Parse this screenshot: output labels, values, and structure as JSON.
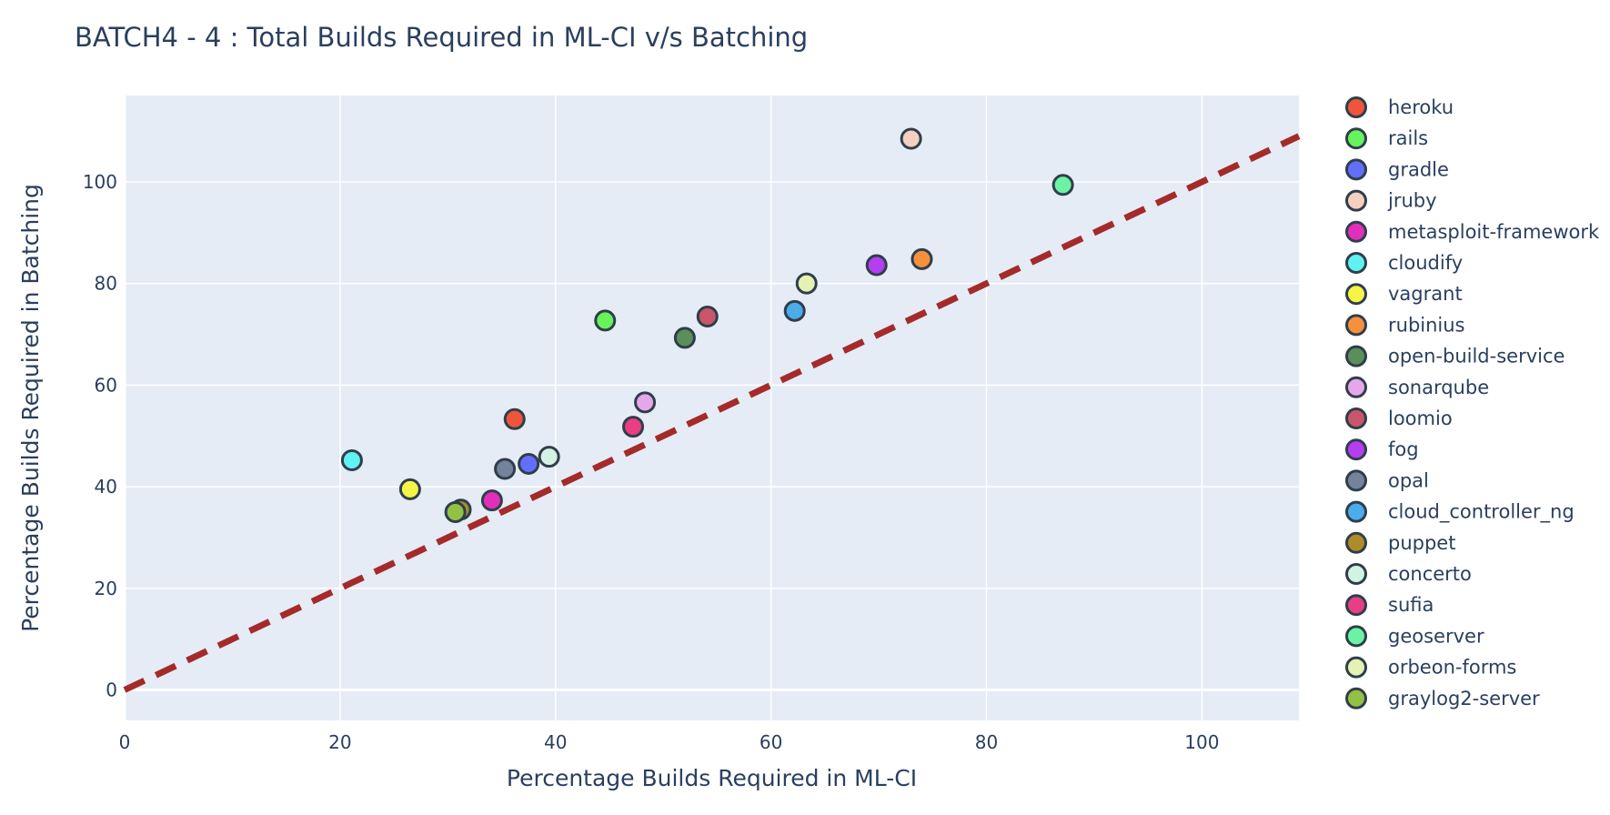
{
  "chart_data": {
    "type": "scatter",
    "title": "BATCH4 - 4 : Total Builds Required in ML-CI v/s Batching",
    "xlabel": "Percentage Builds Required in ML-CI",
    "ylabel": "Percentage Builds Required in Batching",
    "xlim": [
      0,
      109
    ],
    "ylim": [
      -6,
      117
    ],
    "xticks": [
      0,
      20,
      40,
      60,
      80,
      100
    ],
    "yticks": [
      0,
      20,
      40,
      60,
      80,
      100
    ],
    "grid": true,
    "legend_position": "right",
    "reference_line": {
      "x": [
        0,
        109
      ],
      "y": [
        0,
        109
      ],
      "color": "#a52a2a",
      "style": "dashed"
    },
    "series": [
      {
        "name": "heroku",
        "color": "#ef553b",
        "x": 36.2,
        "y": 53.3
      },
      {
        "name": "rails",
        "color": "#66f35b",
        "x": 44.6,
        "y": 72.7
      },
      {
        "name": "gradle",
        "color": "#636efa",
        "x": 37.5,
        "y": 44.5
      },
      {
        "name": "jruby",
        "color": "#f5cfc0",
        "x": 73.0,
        "y": 108.5
      },
      {
        "name": "metasploit-framework",
        "color": "#e22fba",
        "x": 34.1,
        "y": 37.3
      },
      {
        "name": "cloudify",
        "color": "#5ef2f2",
        "x": 21.1,
        "y": 45.2
      },
      {
        "name": "vagrant",
        "color": "#f5f547",
        "x": 26.5,
        "y": 39.5
      },
      {
        "name": "rubinius",
        "color": "#f6913b",
        "x": 74.0,
        "y": 84.8
      },
      {
        "name": "open-build-service",
        "color": "#5b8f5a",
        "x": 52.0,
        "y": 69.3
      },
      {
        "name": "sonarqube",
        "color": "#e6a7ea",
        "x": 48.3,
        "y": 56.6
      },
      {
        "name": "loomio",
        "color": "#c9566b",
        "x": 54.1,
        "y": 73.5
      },
      {
        "name": "fog",
        "color": "#b43ef0",
        "x": 69.8,
        "y": 83.6
      },
      {
        "name": "opal",
        "color": "#74839a",
        "x": 35.3,
        "y": 43.5
      },
      {
        "name": "cloud_controller_ng",
        "color": "#4aace9",
        "x": 62.2,
        "y": 74.6
      },
      {
        "name": "puppet",
        "color": "#b08b2a",
        "x": 31.2,
        "y": 35.5
      },
      {
        "name": "concerto",
        "color": "#d3f2e2",
        "x": 39.4,
        "y": 45.9
      },
      {
        "name": "sufia",
        "color": "#e93d84",
        "x": 47.2,
        "y": 51.8
      },
      {
        "name": "geoserver",
        "color": "#6cf2a5",
        "x": 87.1,
        "y": 99.4
      },
      {
        "name": "orbeon-forms",
        "color": "#e6f2b1",
        "x": 63.3,
        "y": 80.0
      },
      {
        "name": "graylog2-server",
        "color": "#93c143",
        "x": 30.7,
        "y": 35.0
      }
    ]
  }
}
